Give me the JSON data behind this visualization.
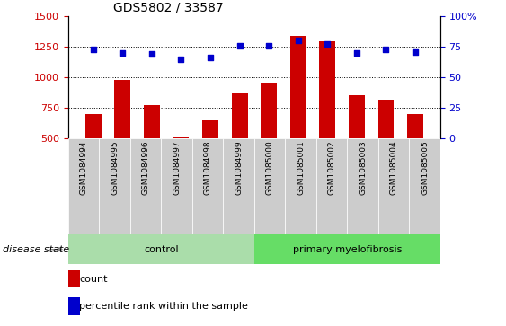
{
  "title": "GDS5802 / 33587",
  "samples": [
    "GSM1084994",
    "GSM1084995",
    "GSM1084996",
    "GSM1084997",
    "GSM1084998",
    "GSM1084999",
    "GSM1085000",
    "GSM1085001",
    "GSM1085002",
    "GSM1085003",
    "GSM1085004",
    "GSM1085005"
  ],
  "bar_values": [
    700,
    980,
    775,
    510,
    650,
    875,
    960,
    1340,
    1295,
    855,
    820,
    700
  ],
  "blue_values": [
    73,
    70,
    69,
    65,
    66,
    76,
    76,
    80,
    77,
    70,
    73,
    71
  ],
  "bar_color": "#cc0000",
  "blue_color": "#0000cc",
  "ylim_left": [
    500,
    1500
  ],
  "ylim_right": [
    0,
    100
  ],
  "yticks_left": [
    500,
    750,
    1000,
    1250,
    1500
  ],
  "yticks_right": [
    0,
    25,
    50,
    75,
    100
  ],
  "control_samples": 6,
  "control_label": "control",
  "disease_label": "primary myelofibrosis",
  "disease_state_label": "disease state",
  "legend_count": "count",
  "legend_percentile": "percentile rank within the sample",
  "grid_values": [
    750,
    1000,
    1250
  ],
  "bar_color_hex": "#cc0000",
  "blue_color_hex": "#0000cc",
  "control_bg": "#aaddaa",
  "disease_bg": "#66dd66",
  "sample_bg": "#cccccc",
  "title_fontsize": 10,
  "tick_fontsize": 8
}
